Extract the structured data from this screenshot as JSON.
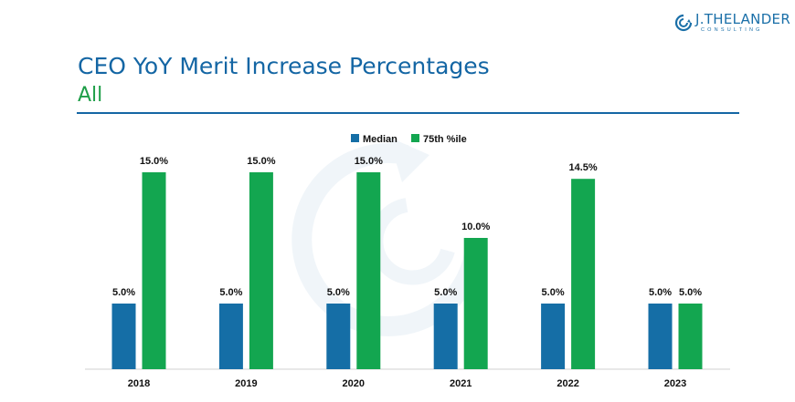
{
  "logo": {
    "name": "J.THELANDER",
    "sub": "CONSULTING"
  },
  "header": {
    "title": "CEO YoY Merit Increase Percentages",
    "subtitle": "All"
  },
  "colors": {
    "median": "#156ea6",
    "p75": "#13a650",
    "title": "#1466a4",
    "subtitle": "#1e9e48"
  },
  "chart_data": {
    "type": "bar",
    "title": "CEO YoY Merit Increase Percentages",
    "subtitle": "All",
    "categories": [
      "2018",
      "2019",
      "2020",
      "2021",
      "2022",
      "2023"
    ],
    "series": [
      {
        "name": "Median",
        "values": [
          5.0,
          5.0,
          5.0,
          5.0,
          5.0,
          5.0
        ],
        "labels": [
          "5.0%",
          "5.0%",
          "5.0%",
          "5.0%",
          "5.0%",
          "5.0%"
        ]
      },
      {
        "name": "75th %ile",
        "values": [
          15.0,
          15.0,
          15.0,
          10.0,
          14.5,
          5.0
        ],
        "labels": [
          "15.0%",
          "15.0%",
          "15.0%",
          "10.0%",
          "14.5%",
          "5.0%"
        ]
      }
    ],
    "xlabel": "",
    "ylabel": "",
    "ylim": [
      0,
      16
    ],
    "legend": "top-center",
    "grid": false
  }
}
